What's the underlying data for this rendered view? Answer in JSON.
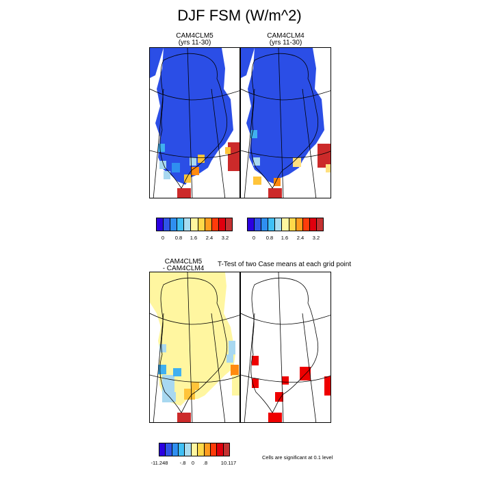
{
  "title": "DJF FSM (W/m^2)",
  "panels": {
    "p1": {
      "line1": "CAM4CLM5",
      "line2": "(yrs 11-30)"
    },
    "p2": {
      "line1": "CAM4CLM4",
      "line2": "(yrs 11-30)"
    },
    "p3": {
      "line1": "CAM4CLM5",
      "line2": "- CAM4CLM4"
    },
    "p4": {
      "line1": "T-Test of two Case means at each grid point"
    }
  },
  "colorbar_top": {
    "colors": [
      "#2b00e0",
      "#2f55e8",
      "#2f8ff0",
      "#40c0f5",
      "#a8dcf0",
      "#fff6a0",
      "#ffd84a",
      "#ff9c1e",
      "#ff3b0a",
      "#e0000e",
      "#c43232"
    ],
    "ticks": [
      "0",
      "0.8",
      "1.6",
      "2.4",
      "3.2"
    ]
  },
  "colorbar_bottom": {
    "colors": [
      "#2b00e0",
      "#2f55e8",
      "#2f8ff0",
      "#40c0f5",
      "#a8dcf0",
      "#fff6a0",
      "#ffd84a",
      "#ff9c1e",
      "#ff3b0a",
      "#e0000e",
      "#c43232"
    ],
    "ticks": [
      "-11.248",
      "-.8",
      "0",
      ".8",
      "10.117"
    ]
  },
  "note": "Cells are significant at 0.1 level",
  "colors": {
    "fill_dark_blue": "#2b4ee6",
    "fill_light_yellow": "#fff6a0",
    "fill_red": "#cc2a2a",
    "fill_orange": "#ff8a10",
    "fill_gold": "#ffc43a",
    "fill_cyan": "#40b0f0",
    "fill_pale_blue": "#a8d8f0",
    "significant_red": "#ee0000"
  }
}
